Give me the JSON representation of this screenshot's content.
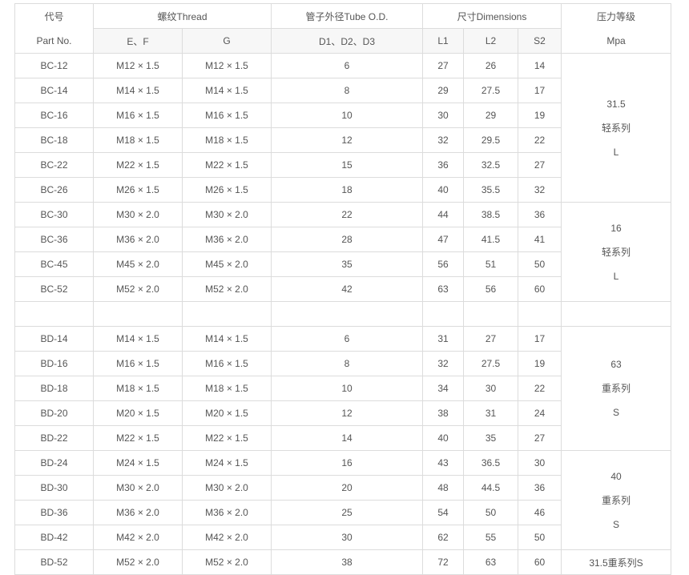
{
  "header": {
    "code": [
      "代号",
      "Part No."
    ],
    "thread": "螺纹Thread",
    "tube": "管子外径Tube O.D.",
    "dims": "尺寸Dimensions",
    "pressure": [
      "压力等级",
      "Mpa"
    ],
    "sub": [
      "E、F",
      "G",
      "D1、D2、D3",
      "L1",
      "L2",
      "S2"
    ]
  },
  "table": {
    "sections": [
      {
        "groups": [
          {
            "pressure": [
              "31.5",
              "轻系列",
              "L"
            ],
            "rows": [
              [
                "BC-12",
                "M12 × 1.5",
                "M12 × 1.5",
                "6",
                "27",
                "26",
                "14"
              ],
              [
                "BC-14",
                "M14 × 1.5",
                "M14 × 1.5",
                "8",
                "29",
                "27.5",
                "17"
              ],
              [
                "BC-16",
                "M16 × 1.5",
                "M16 × 1.5",
                "10",
                "30",
                "29",
                "19"
              ],
              [
                "BC-18",
                "M18 × 1.5",
                "M18 × 1.5",
                "12",
                "32",
                "29.5",
                "22"
              ],
              [
                "BC-22",
                "M22 × 1.5",
                "M22 × 1.5",
                "15",
                "36",
                "32.5",
                "27"
              ],
              [
                "BC-26",
                "M26 × 1.5",
                "M26 × 1.5",
                "18",
                "40",
                "35.5",
                "32"
              ]
            ]
          },
          {
            "pressure": [
              "16",
              "轻系列",
              "L"
            ],
            "rows": [
              [
                "BC-30",
                "M30 × 2.0",
                "M30 × 2.0",
                "22",
                "44",
                "38.5",
                "36"
              ],
              [
                "BC-36",
                "M36 × 2.0",
                "M36 × 2.0",
                "28",
                "47",
                "41.5",
                "41"
              ],
              [
                "BC-45",
                "M45 × 2.0",
                "M45 × 2.0",
                "35",
                "56",
                "51",
                "50"
              ],
              [
                "BC-52",
                "M52 × 2.0",
                "M52 × 2.0",
                "42",
                "63",
                "56",
                "60"
              ]
            ]
          }
        ]
      },
      {
        "groups": [
          {
            "pressure": [
              "63",
              "重系列",
              "S"
            ],
            "rows": [
              [
                "BD-14",
                "M14 × 1.5",
                "M14 × 1.5",
                "6",
                "31",
                "27",
                "17"
              ],
              [
                "BD-16",
                "M16 × 1.5",
                "M16 × 1.5",
                "8",
                "32",
                "27.5",
                "19"
              ],
              [
                "BD-18",
                "M18 × 1.5",
                "M18 × 1.5",
                "10",
                "34",
                "30",
                "22"
              ],
              [
                "BD-20",
                "M20 × 1.5",
                "M20 × 1.5",
                "12",
                "38",
                "31",
                "24"
              ],
              [
                "BD-22",
                "M22 × 1.5",
                "M22 × 1.5",
                "14",
                "40",
                "35",
                "27"
              ]
            ]
          },
          {
            "pressure": [
              "40",
              "重系列",
              "S"
            ],
            "rows": [
              [
                "BD-24",
                "M24 × 1.5",
                "M24 × 1.5",
                "16",
                "43",
                "36.5",
                "30"
              ],
              [
                "BD-30",
                "M30 × 2.0",
                "M30 × 2.0",
                "20",
                "48",
                "44.5",
                "36"
              ],
              [
                "BD-36",
                "M36 × 2.0",
                "M36 × 2.0",
                "25",
                "54",
                "50",
                "46"
              ],
              [
                "BD-42",
                "M42 × 2.0",
                "M42 × 2.0",
                "30",
                "62",
                "55",
                "50"
              ]
            ]
          },
          {
            "pressure": [
              "31.5重系列S"
            ],
            "rows": [
              [
                "BD-52",
                "M52 × 2.0",
                "M52 × 2.0",
                "38",
                "72",
                "63",
                "60"
              ]
            ]
          }
        ]
      }
    ]
  }
}
